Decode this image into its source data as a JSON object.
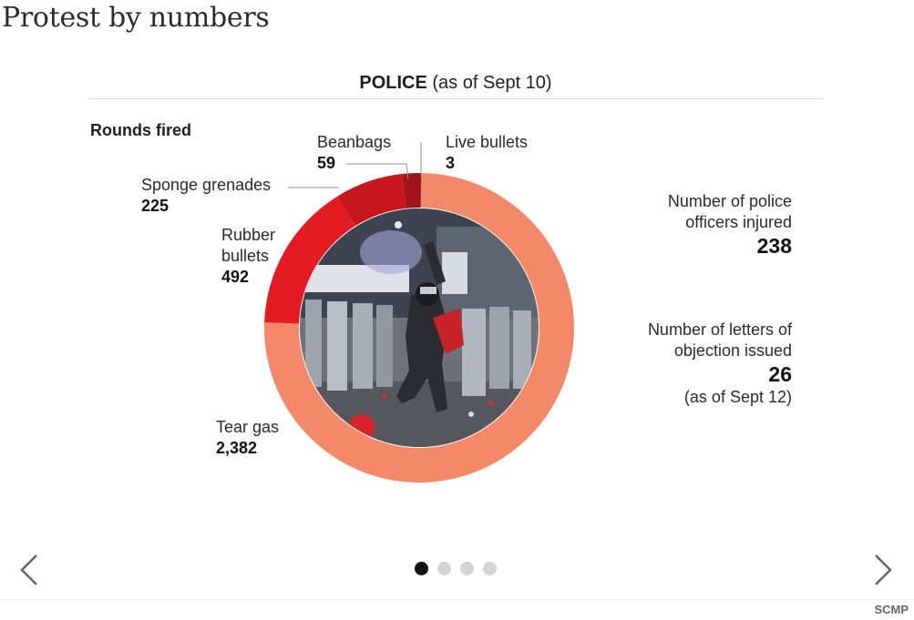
{
  "title": "Protest by numbers",
  "section": {
    "label_bold": "POLICE",
    "label_rest": " (as of Sept 10)"
  },
  "colors": {
    "tear_gas": "#f4896a",
    "rubber_bullets": "#e51b23",
    "sponge_grenades": "#c8161e",
    "beanbags": "#a3121a",
    "live_bullets": "#5a0a0e"
  },
  "chart_data": {
    "type": "pie",
    "variant": "donut",
    "title": "Rounds fired",
    "slices": [
      {
        "label": "Live bullets",
        "value": 3,
        "value_text": "3",
        "color": "#5a0a0e"
      },
      {
        "label": "Tear gas",
        "value": 2382,
        "value_text": "2,382",
        "color": "#f4896a"
      },
      {
        "label": "Rubber bullets",
        "value": 492,
        "value_text": "492",
        "color": "#e51b23"
      },
      {
        "label": "Sponge grenades",
        "value": 225,
        "value_text": "225",
        "color": "#c8161e"
      },
      {
        "label": "Beanbags",
        "value": 59,
        "value_text": "59",
        "color": "#a3121a"
      }
    ]
  },
  "labels": {
    "rubber_bullets_line1": "Rubber",
    "rubber_bullets_line2": "bullets"
  },
  "stats": {
    "officers_injured": {
      "line1": "Number of police",
      "line2": "officers injured",
      "value": "238"
    },
    "objection_letters": {
      "line1": "Number of letters of",
      "line2": "objection issued",
      "value": "26",
      "note": "(as of Sept 12)"
    }
  },
  "photo": {
    "icon": "protest-photo"
  },
  "carousel": {
    "pages": 4,
    "active": 0,
    "prev_icon": "chevron-left-icon",
    "next_icon": "chevron-right-icon"
  },
  "credit": "SCMP"
}
